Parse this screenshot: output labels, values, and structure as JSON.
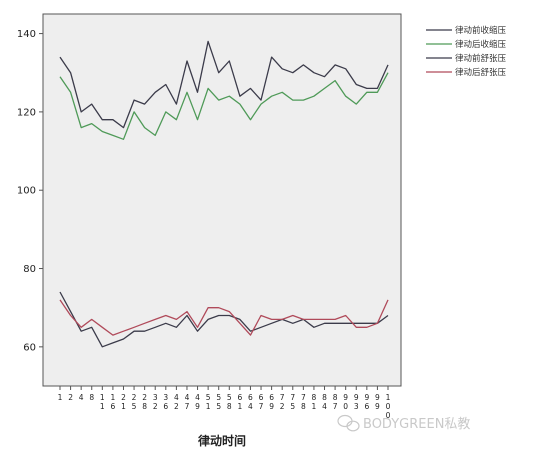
{
  "chart_data": {
    "type": "line",
    "xlabel": "律动时间",
    "ylabel": "",
    "ylim": [
      50,
      145
    ],
    "yticks": [
      60,
      80,
      100,
      120,
      140
    ],
    "grid": false,
    "legend_position": "top-right outside plot",
    "x": [
      "1",
      "2",
      "4",
      "8",
      "11",
      "16",
      "21",
      "25",
      "28",
      "32",
      "36",
      "42",
      "47",
      "49",
      "51",
      "55",
      "58",
      "61",
      "64",
      "67",
      "69",
      "72",
      "75",
      "78",
      "81",
      "84",
      "87",
      "90",
      "93",
      "96",
      "99",
      "100"
    ],
    "series": [
      {
        "name": "律动前收缩压",
        "color": "#3b3b4a",
        "values": [
          134,
          130,
          120,
          122,
          118,
          118,
          116,
          123,
          122,
          125,
          127,
          122,
          133,
          125,
          138,
          130,
          133,
          124,
          126,
          123,
          134,
          131,
          130,
          132,
          130,
          129,
          132,
          131,
          127,
          126,
          126,
          132
        ]
      },
      {
        "name": "律动后收缩压",
        "color": "#4f9a58",
        "values": [
          129,
          125,
          116,
          117,
          115,
          114,
          113,
          120,
          116,
          114,
          120,
          118,
          125,
          118,
          126,
          123,
          124,
          122,
          118,
          122,
          124,
          125,
          123,
          123,
          124,
          126,
          128,
          124,
          122,
          125,
          125,
          130
        ]
      },
      {
        "name": "律动前舒张压",
        "color": "#3b3b4a",
        "values": [
          74,
          69,
          64,
          65,
          60,
          61,
          62,
          64,
          64,
          65,
          66,
          65,
          68,
          64,
          67,
          68,
          68,
          67,
          64,
          65,
          66,
          67,
          66,
          67,
          65,
          66,
          66,
          66,
          66,
          66,
          66,
          68
        ]
      },
      {
        "name": "律动后舒张压",
        "color": "#b04a5a",
        "values": [
          72,
          68,
          65,
          67,
          65,
          63,
          64,
          65,
          66,
          67,
          68,
          67,
          69,
          65,
          70,
          70,
          69,
          66,
          63,
          68,
          67,
          67,
          68,
          67,
          67,
          67,
          67,
          68,
          65,
          65,
          66,
          72
        ]
      }
    ]
  },
  "watermark": {
    "text": "BODYGREEN私教",
    "icon": "wechat-icon"
  }
}
